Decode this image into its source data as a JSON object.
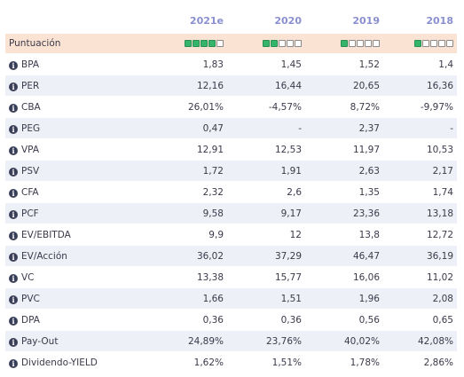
{
  "columns": [
    "2021e",
    "2020",
    "2019",
    "2018"
  ],
  "score_row": {
    "label": "Puntuación",
    "total": 5,
    "filled": [
      4,
      2,
      1,
      1
    ]
  },
  "rows": [
    {
      "label": "BPA",
      "values": [
        "1,83",
        "1,45",
        "1,52",
        "1,4"
      ]
    },
    {
      "label": "PER",
      "values": [
        "12,16",
        "16,44",
        "20,65",
        "16,36"
      ]
    },
    {
      "label": "CBA",
      "values": [
        "26,01%",
        "-4,57%",
        "8,72%",
        "-9,97%"
      ]
    },
    {
      "label": "PEG",
      "values": [
        "0,47",
        "-",
        "2,37",
        "-"
      ]
    },
    {
      "label": "VPA",
      "values": [
        "12,91",
        "12,53",
        "11,97",
        "10,53"
      ]
    },
    {
      "label": "PSV",
      "values": [
        "1,72",
        "1,91",
        "2,63",
        "2,17"
      ]
    },
    {
      "label": "CFA",
      "values": [
        "2,32",
        "2,6",
        "1,35",
        "1,74"
      ]
    },
    {
      "label": "PCF",
      "values": [
        "9,58",
        "9,17",
        "23,36",
        "13,18"
      ]
    },
    {
      "label": "EV/EBITDA",
      "values": [
        "9,9",
        "12",
        "13,8",
        "12,72"
      ]
    },
    {
      "label": "EV/Acción",
      "values": [
        "36,02",
        "37,29",
        "46,47",
        "36,19"
      ]
    },
    {
      "label": "VC",
      "values": [
        "13,38",
        "15,77",
        "16,06",
        "11,02"
      ]
    },
    {
      "label": "PVC",
      "values": [
        "1,66",
        "1,51",
        "1,96",
        "2,08"
      ]
    },
    {
      "label": "DPA",
      "values": [
        "0,36",
        "0,36",
        "0,56",
        "0,65"
      ]
    },
    {
      "label": "Pay-Out",
      "values": [
        "24,89%",
        "23,76%",
        "40,02%",
        "42,08%"
      ]
    },
    {
      "label": "Dividendo-YIELD",
      "values": [
        "1,62%",
        "1,51%",
        "1,78%",
        "2,86%"
      ]
    }
  ],
  "colors": {
    "accent": "#8a8fd0",
    "score_bg": "#fbe3d4",
    "stripe": "#eef0f7",
    "score_on": "#35b56a"
  },
  "icons": {
    "row": "info-icon"
  }
}
